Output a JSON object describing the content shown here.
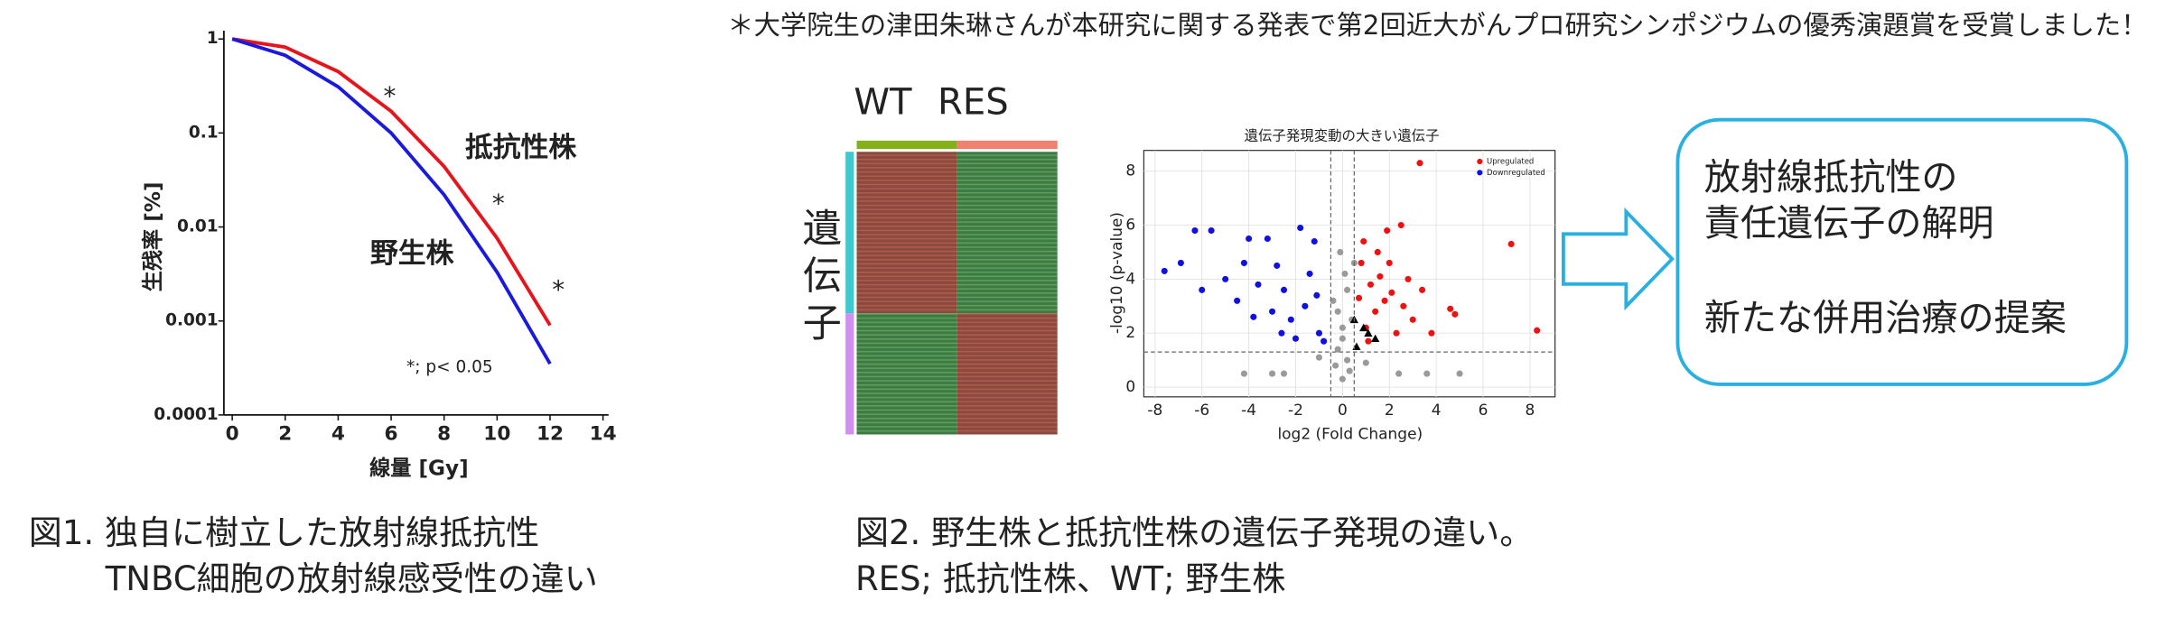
{
  "notice": "＊大学院生の津田朱琳さんが本研究に関する発表で第2回近大がんプロ研究シンポジウムの優秀演題賞を受賞しました！",
  "chart_data": [
    {
      "type": "line",
      "xlabel": "線量 [Gy]",
      "ylabel": "生残率 [%]",
      "log_y": true,
      "grid": false,
      "x": [
        0,
        2,
        4,
        6,
        8,
        10,
        12
      ],
      "series": [
        {
          "name": "抵抗性株",
          "color": "#e8141c",
          "values": [
            1,
            0.82,
            0.45,
            0.17,
            0.044,
            0.0076,
            0.0009
          ]
        },
        {
          "name": "野生株",
          "color": "#1a1adc",
          "values": [
            1,
            0.67,
            0.31,
            0.1,
            0.022,
            0.0033,
            0.00035
          ]
        }
      ],
      "xlim": [
        0,
        14
      ],
      "xticks": [
        0,
        2,
        4,
        6,
        8,
        10,
        12,
        14
      ],
      "ylim": [
        0.0001,
        1
      ],
      "yticks": [
        0.0001,
        0.001,
        0.01,
        0.1,
        1
      ],
      "annotations": [
        "*",
        "*",
        "*",
        "*; p< 0.05"
      ]
    },
    {
      "type": "scatter",
      "title": "遺伝子発現変動の大きい遺伝子",
      "xlabel": "log2 (Fold Change)",
      "ylabel": "-log10 (p-value)",
      "grid": true,
      "thresholds": {
        "x": [
          -0.5,
          0.5
        ],
        "y": 1.3
      },
      "series": [
        {
          "name": "Upregulated",
          "color": "#f01010",
          "marker": "circle",
          "x": [
            3.3,
            7.2,
            8.3,
            4.6,
            4.8,
            2.5,
            1.9,
            0.8,
            1.2,
            1.6,
            2.1,
            2.6,
            3.0,
            1.0,
            1.4,
            1.8,
            2.3,
            0.7,
            1.1,
            2.8,
            3.4,
            1.5,
            0.9,
            2.0,
            3.8
          ],
          "values": [
            8.3,
            5.3,
            2.1,
            2.9,
            2.7,
            6.0,
            5.8,
            4.6,
            3.8,
            4.1,
            3.5,
            3.0,
            2.5,
            2.2,
            2.8,
            3.2,
            2.0,
            3.3,
            1.7,
            4.0,
            3.6,
            5.0,
            5.4,
            4.6,
            2.0
          ]
        },
        {
          "name": "Downregulated",
          "color": "#1010e0",
          "marker": "circle",
          "x": [
            -7.6,
            -6.9,
            -6.3,
            -5.6,
            -6.0,
            -4.0,
            -3.2,
            -1.8,
            -1.2,
            -5.0,
            -4.5,
            -3.6,
            -2.8,
            -2.2,
            -1.6,
            -1.0,
            -0.8,
            -3.0,
            -2.5,
            -1.4,
            -4.2,
            -2.0,
            -3.8,
            -1.1,
            -2.6
          ],
          "values": [
            4.3,
            4.6,
            5.8,
            5.8,
            3.6,
            5.5,
            5.5,
            5.9,
            5.4,
            4.0,
            3.2,
            3.8,
            4.5,
            2.5,
            3.0,
            2.0,
            1.7,
            2.8,
            3.6,
            4.2,
            4.6,
            1.8,
            2.6,
            3.4,
            2.0
          ]
        },
        {
          "color": "#9a9a9a",
          "marker": "circle",
          "x": [
            0,
            0.2,
            -0.2,
            0.4,
            -0.4,
            0.1,
            -0.1,
            0.3,
            -0.3,
            0,
            -2.5,
            -3.0,
            -4.2,
            2.4,
            3.6,
            5.0,
            0.2,
            -0.2,
            0.0,
            1.0,
            -1.0,
            0.5
          ],
          "values": [
            0.3,
            1.0,
            1.4,
            2.5,
            3.2,
            4.2,
            5.0,
            0.6,
            0.8,
            2.2,
            0.5,
            0.5,
            0.5,
            0.5,
            0.5,
            0.5,
            3.6,
            2.8,
            1.8,
            0.9,
            1.1,
            4.6
          ]
        },
        {
          "color": "#000000",
          "marker": "triangle",
          "x": [
            0.5,
            0.6,
            1.1,
            1.4,
            0.9
          ],
          "values": [
            2.5,
            1.5,
            2.0,
            1.8,
            2.2
          ]
        }
      ],
      "legend": "upper right",
      "xlim": [
        -8.48,
        9.07
      ],
      "xticks": [
        -8,
        -6,
        -4,
        -2,
        0,
        2,
        4,
        6,
        8
      ],
      "ylim": [
        -0.36,
        8.77
      ],
      "yticks": [
        0,
        2,
        4,
        6,
        8
      ]
    }
  ],
  "heatmap": {
    "columns": [
      "WT",
      "RES"
    ],
    "row_label": "遺伝子"
  },
  "captions": [
    [
      "図1. 独自に樹立した放射線抵抗性",
      "TNBC細胞の放射線感受性の違い"
    ],
    [
      "図2. 野生株と抵抗性株の遺伝子発現の違い。",
      "RES; 抵抗性株、WT; 野生株"
    ]
  ],
  "conclusion": [
    "放射線抵抗性の",
    "責任遺伝子の解明",
    "新たな併用治療の提案"
  ]
}
